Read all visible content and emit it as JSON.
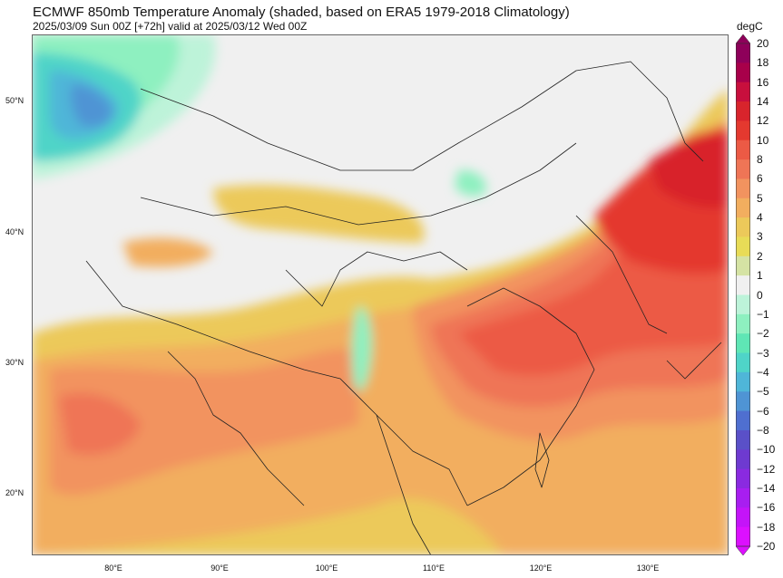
{
  "header": {
    "title": "ECMWF 850mb Temperature Anomaly (shaded, based on ERA5 1979-2018 Climatology)",
    "subtitle": "2025/03/09 Sun 00Z [+72h] valid at 2025/03/12 Wed 00Z"
  },
  "map": {
    "lat_labels": [
      "50°N",
      "40°N",
      "30°N",
      "20°N"
    ],
    "lon_labels": [
      "80°E",
      "90°E",
      "100°E",
      "110°E",
      "120°E",
      "130°E"
    ]
  },
  "colorbar": {
    "unit": "degC",
    "levels": [
      "20",
      "18",
      "16",
      "14",
      "12",
      "10",
      "8",
      "6",
      "5",
      "4",
      "3",
      "2",
      "1",
      "0",
      "−1",
      "−2",
      "−3",
      "−4",
      "−5",
      "−6",
      "−8",
      "−10",
      "−12",
      "−14",
      "−16",
      "−18",
      "−20"
    ],
    "colors": [
      "#8e005a",
      "#a8004a",
      "#c80f3d",
      "#d8242c",
      "#e4392f",
      "#ec5a45",
      "#ef7556",
      "#f2935f",
      "#f2ae5f",
      "#ecc95a",
      "#e8dc57",
      "#d5e3a4",
      "#f0f0f0",
      "#bdf3d9",
      "#8ef0c0",
      "#5fe6b5",
      "#4fd4c8",
      "#4fb6d8",
      "#4f94d4",
      "#4f6fd0",
      "#5a50c8",
      "#6e3ad0",
      "#8a2ae0",
      "#a81ef0",
      "#c414f8",
      "#dc10ff"
    ]
  }
}
